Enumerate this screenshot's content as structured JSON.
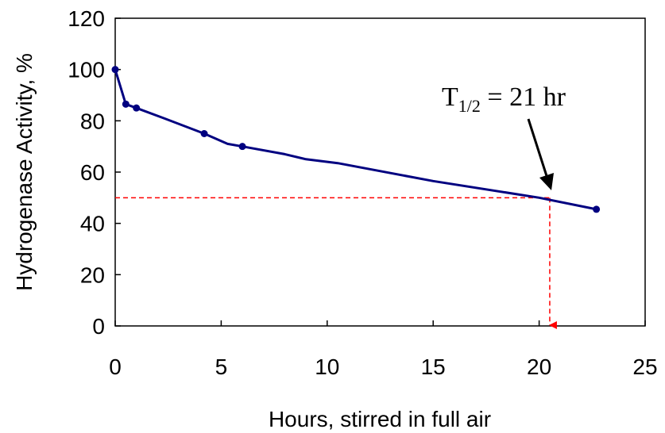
{
  "chart_data": {
    "type": "line",
    "title": "",
    "xlabel": "Hours, stirred in full air",
    "ylabel": "Hydrogenase Activity, %",
    "xlim": [
      0,
      25
    ],
    "ylim": [
      0,
      120
    ],
    "xticks": [
      0,
      5,
      10,
      15,
      20,
      25
    ],
    "yticks": [
      0,
      20,
      40,
      60,
      80,
      100,
      120
    ],
    "grid": false,
    "legend": "none",
    "series": [
      {
        "color": "#000080",
        "points": [
          {
            "x": 0,
            "y": 100
          },
          {
            "x": 0.5,
            "y": 86.5
          },
          {
            "x": 1.0,
            "y": 85
          },
          {
            "x": 4.2,
            "y": 75
          },
          {
            "x": 6.0,
            "y": 70
          },
          {
            "x": 22.7,
            "y": 45.5
          }
        ],
        "curve": [
          {
            "x": 0,
            "y": 100
          },
          {
            "x": 0.5,
            "y": 86.5
          },
          {
            "x": 1.0,
            "y": 85
          },
          {
            "x": 2.3,
            "y": 81
          },
          {
            "x": 4.2,
            "y": 75
          },
          {
            "x": 5.3,
            "y": 71
          },
          {
            "x": 6.0,
            "y": 70
          },
          {
            "x": 8.0,
            "y": 67
          },
          {
            "x": 9.0,
            "y": 65
          },
          {
            "x": 10.5,
            "y": 63.5
          },
          {
            "x": 15.0,
            "y": 56.5
          },
          {
            "x": 20.0,
            "y": 50
          },
          {
            "x": 22.7,
            "y": 45.5
          }
        ]
      }
    ],
    "reference_lines": {
      "color": "#ff0000",
      "y_level": 50,
      "x_at_half": 20.5
    },
    "annotation": {
      "text_main": "T",
      "text_sub": "1/2",
      "text_rest": " = 21 hr"
    }
  }
}
